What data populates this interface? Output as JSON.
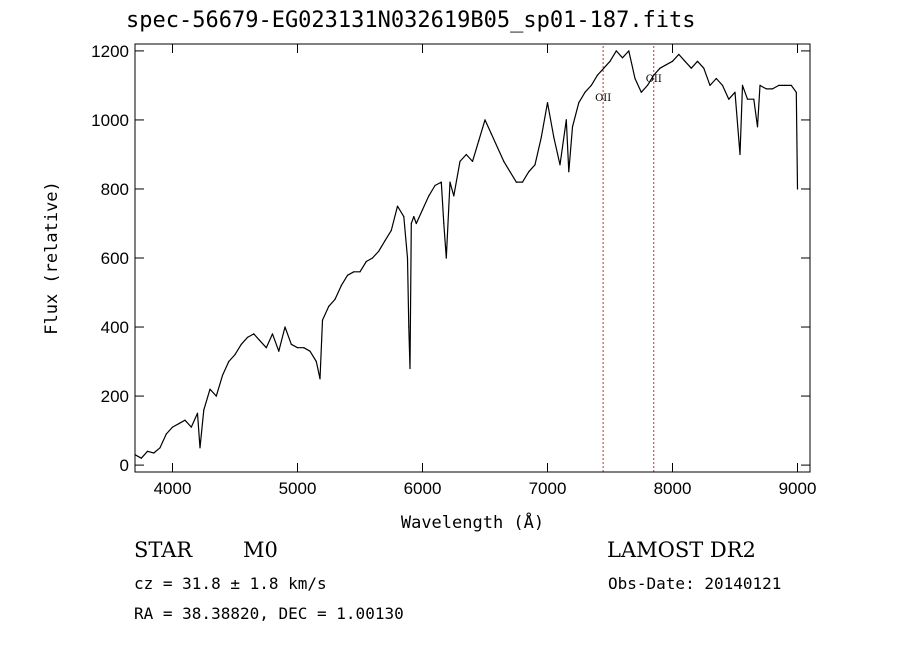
{
  "header": {
    "title": "spec-56679-EG023131N032619B05_sp01-187.fits"
  },
  "footer": {
    "object_class": "STAR",
    "subclass": "M0",
    "survey": "LAMOST DR2",
    "redshift_text": "cz = 31.8 ± 1.8 km/s",
    "obs_date_text": "Obs-Date: 20140121",
    "coords_text": "RA =  38.38820, DEC =   1.00130"
  },
  "chart_data": {
    "type": "line",
    "title": "spec-56679-EG023131N032619B05_sp01-187.fits",
    "xlabel": "Wavelength (Å)",
    "ylabel": "Flux (relative)",
    "xlim": [
      3700,
      9100
    ],
    "ylim": [
      -20,
      1220
    ],
    "xticks": [
      4000,
      5000,
      6000,
      7000,
      8000,
      9000
    ],
    "yticks": [
      0,
      200,
      400,
      600,
      800,
      1000,
      1200
    ],
    "grid": false,
    "line_color": "#000000",
    "series": [
      {
        "x": [
          3700,
          3750,
          3800,
          3850,
          3900,
          3950,
          4000,
          4050,
          4100,
          4150,
          4200,
          4220,
          4250,
          4300,
          4350,
          4400,
          4450,
          4500,
          4550,
          4600,
          4650,
          4700,
          4750,
          4800,
          4850,
          4900,
          4950,
          5000,
          5050,
          5100,
          5150,
          5180,
          5200,
          5250,
          5300,
          5350,
          5400,
          5450,
          5500,
          5550,
          5600,
          5650,
          5700,
          5750,
          5800,
          5850,
          5880,
          5890,
          5900,
          5910,
          5930,
          5950,
          6000,
          6050,
          6100,
          6150,
          6170,
          6190,
          6220,
          6250,
          6300,
          6350,
          6400,
          6450,
          6500,
          6550,
          6600,
          6650,
          6700,
          6750,
          6800,
          6850,
          6900,
          6950,
          7000,
          7050,
          7100,
          7150,
          7170,
          7200,
          7250,
          7300,
          7350,
          7400,
          7450,
          7500,
          7550,
          7600,
          7650,
          7700,
          7750,
          7800,
          7850,
          7900,
          7950,
          8000,
          8050,
          8100,
          8150,
          8200,
          8250,
          8300,
          8350,
          8400,
          8450,
          8500,
          8540,
          8560,
          8600,
          8650,
          8680,
          8700,
          8750,
          8800,
          8850,
          8900,
          8950,
          8990,
          9000
        ],
        "y": [
          30,
          20,
          40,
          35,
          50,
          90,
          110,
          120,
          130,
          110,
          150,
          50,
          160,
          220,
          200,
          260,
          300,
          320,
          350,
          370,
          380,
          360,
          340,
          380,
          330,
          400,
          350,
          340,
          340,
          330,
          300,
          250,
          420,
          460,
          480,
          520,
          550,
          560,
          560,
          590,
          600,
          620,
          650,
          680,
          750,
          720,
          600,
          400,
          280,
          700,
          720,
          700,
          740,
          780,
          810,
          820,
          700,
          600,
          820,
          780,
          880,
          900,
          880,
          940,
          1000,
          960,
          920,
          880,
          850,
          820,
          820,
          850,
          870,
          950,
          1050,
          950,
          870,
          1000,
          850,
          980,
          1050,
          1080,
          1100,
          1130,
          1150,
          1170,
          1200,
          1180,
          1200,
          1120,
          1080,
          1100,
          1130,
          1150,
          1160,
          1170,
          1190,
          1170,
          1150,
          1170,
          1150,
          1100,
          1120,
          1100,
          1060,
          1080,
          900,
          1100,
          1060,
          1060,
          980,
          1100,
          1090,
          1090,
          1100,
          1100,
          1100,
          1080,
          800
        ]
      }
    ],
    "annotations": [
      {
        "text": "OII",
        "x": 7445,
        "y": 1055,
        "line_x": 7445
      },
      {
        "text": "OII",
        "x": 7850,
        "y": 1110,
        "line_x": 7850
      }
    ]
  }
}
